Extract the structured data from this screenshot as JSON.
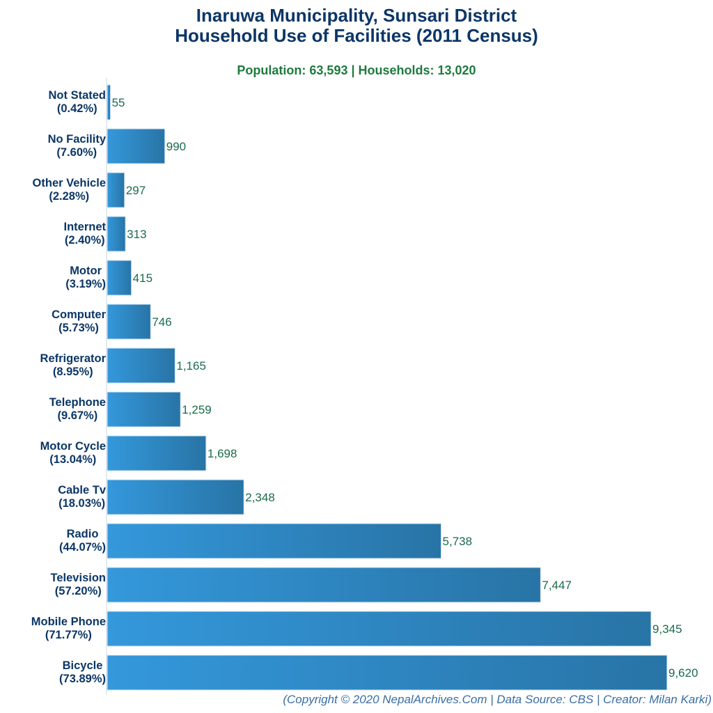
{
  "chart_data": {
    "type": "bar",
    "orientation": "horizontal",
    "title_line1": "Inaruwa Municipality, Sunsari District",
    "title_line2": "Household Use of Facilities (2011 Census)",
    "subtitle": "Population: 63,593 | Households: 13,020",
    "credit": "(Copyright © 2020 NepalArchives.Com | Data Source: CBS | Creator: Milan Karki)",
    "categories": [
      "Not Stated",
      "No Facility",
      "Other Vehicle",
      "Internet",
      "Motor",
      "Computer",
      "Refrigerator",
      "Telephone",
      "Motor Cycle",
      "Cable Tv",
      "Radio",
      "Television",
      "Mobile Phone",
      "Bicycle"
    ],
    "percent_labels": [
      "(0.42%)",
      "(7.60%)",
      "(2.28%)",
      "(2.40%)",
      "(3.19%)",
      "(5.73%)",
      "(8.95%)",
      "(9.67%)",
      "(13.04%)",
      "(18.03%)",
      "(44.07%)",
      "(57.20%)",
      "(71.77%)",
      "(73.89%)"
    ],
    "values": [
      55,
      990,
      297,
      313,
      415,
      746,
      1165,
      1259,
      1698,
      2348,
      5738,
      7447,
      9345,
      9620
    ],
    "value_labels": [
      "55",
      "990",
      "297",
      "313",
      "415",
      "746",
      "1,165",
      "1,259",
      "1,698",
      "2,348",
      "5,738",
      "7,447",
      "9,345",
      "9,620"
    ],
    "xlim": [
      0,
      9620
    ],
    "grid": false,
    "colors": {
      "bar_start": "#3498db",
      "bar_end": "#2874a6",
      "title": "#0b3666",
      "subtitle": "#1e7a3e",
      "value_label": "#1a6b4a",
      "credit": "#3a6ea5"
    }
  }
}
